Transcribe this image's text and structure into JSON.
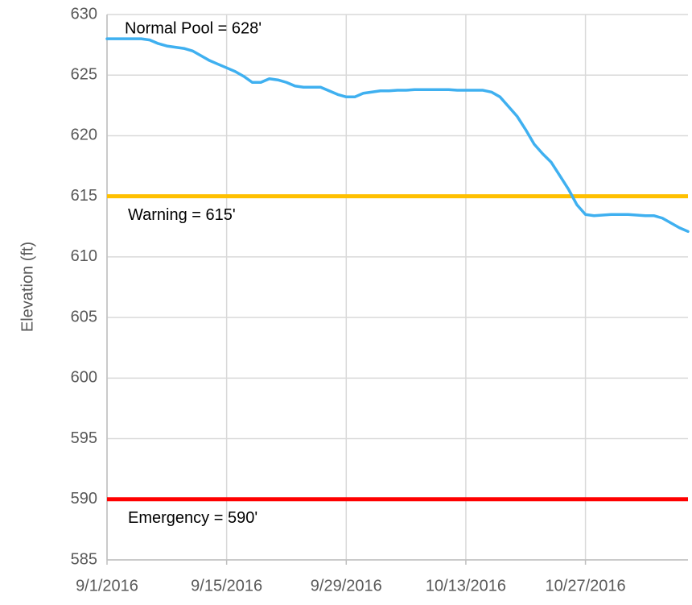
{
  "chart_data": {
    "type": "line",
    "y_label": "Elevation (ft)",
    "x": [
      "2016-09-01",
      "2016-09-02",
      "2016-09-03",
      "2016-09-04",
      "2016-09-05",
      "2016-09-06",
      "2016-09-07",
      "2016-09-08",
      "2016-09-09",
      "2016-09-10",
      "2016-09-11",
      "2016-09-12",
      "2016-09-13",
      "2016-09-14",
      "2016-09-15",
      "2016-09-16",
      "2016-09-17",
      "2016-09-18",
      "2016-09-19",
      "2016-09-20",
      "2016-09-21",
      "2016-09-22",
      "2016-09-23",
      "2016-09-24",
      "2016-09-25",
      "2016-09-26",
      "2016-09-27",
      "2016-09-28",
      "2016-09-29",
      "2016-09-30",
      "2016-10-01",
      "2016-10-02",
      "2016-10-03",
      "2016-10-04",
      "2016-10-05",
      "2016-10-06",
      "2016-10-07",
      "2016-10-08",
      "2016-10-09",
      "2016-10-10",
      "2016-10-11",
      "2016-10-12",
      "2016-10-13",
      "2016-10-14",
      "2016-10-15",
      "2016-10-16",
      "2016-10-17",
      "2016-10-18",
      "2016-10-19",
      "2016-10-20",
      "2016-10-21",
      "2016-10-22",
      "2016-10-23",
      "2016-10-24",
      "2016-10-25",
      "2016-10-26",
      "2016-10-27",
      "2016-10-28",
      "2016-10-29",
      "2016-10-30",
      "2016-10-31",
      "2016-11-01",
      "2016-11-02",
      "2016-11-03",
      "2016-11-04",
      "2016-11-05",
      "2016-11-06",
      "2016-11-07",
      "2016-11-08"
    ],
    "series": [
      {
        "color": "#3fb0f0",
        "values": [
          628.0,
          628.0,
          628.0,
          628.0,
          628.0,
          627.9,
          627.6,
          627.4,
          627.3,
          627.2,
          627.0,
          626.6,
          626.2,
          625.9,
          625.6,
          625.3,
          624.9,
          624.4,
          624.4,
          624.7,
          624.6,
          624.4,
          624.1,
          624.0,
          624.0,
          624.0,
          623.7,
          623.4,
          623.2,
          623.2,
          623.5,
          623.6,
          623.7,
          623.7,
          623.75,
          623.75,
          623.8,
          623.8,
          623.8,
          623.8,
          623.8,
          623.75,
          623.75,
          623.75,
          623.75,
          623.6,
          623.2,
          622.4,
          621.6,
          620.5,
          619.3,
          618.5,
          617.8,
          616.7,
          615.6,
          614.3,
          613.5,
          613.4,
          613.45,
          613.5,
          613.5,
          613.5,
          613.45,
          613.4,
          613.4,
          613.2,
          612.8,
          612.4,
          612.1
        ]
      }
    ],
    "reference_lines": [
      {
        "value": 615,
        "color": "#ffc000",
        "label": "Warning = 615'"
      },
      {
        "value": 590,
        "color": "#ff0000",
        "label": "Emergency = 590'"
      }
    ],
    "annotations": [
      {
        "text": "Normal Pool = 628'",
        "y": 628
      }
    ],
    "xlim": [
      "2016-09-01",
      "2016-11-08"
    ],
    "xticks": [
      {
        "value": "2016-09-01",
        "label": "9/1/2016"
      },
      {
        "value": "2016-09-15",
        "label": "9/15/2016"
      },
      {
        "value": "2016-09-29",
        "label": "9/29/2016"
      },
      {
        "value": "2016-10-13",
        "label": "10/13/2016"
      },
      {
        "value": "2016-10-27",
        "label": "10/27/2016"
      }
    ],
    "ylim": [
      585,
      630
    ],
    "yticks": [
      585,
      590,
      595,
      600,
      605,
      610,
      615,
      620,
      625,
      630
    ],
    "grid": true
  }
}
